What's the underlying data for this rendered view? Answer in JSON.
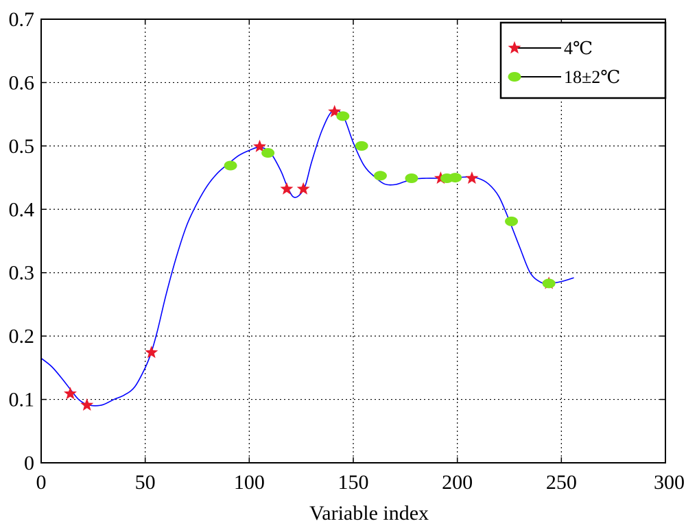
{
  "chart_data": {
    "type": "line",
    "title": "",
    "xlabel": "Variable index",
    "ylabel": "",
    "xlim": [
      0,
      300
    ],
    "ylim": [
      0,
      0.7
    ],
    "x_ticks": [
      0,
      50,
      100,
      150,
      200,
      250,
      300
    ],
    "y_ticks": [
      0,
      0.1,
      0.2,
      0.3,
      0.4,
      0.5,
      0.6,
      0.7
    ],
    "x_tick_labels": [
      "0",
      "50",
      "100",
      "150",
      "200",
      "250",
      "300"
    ],
    "y_tick_labels": [
      "0",
      "0.1",
      "0.2",
      "0.3",
      "0.4",
      "0.5",
      "0.6",
      "0.7"
    ],
    "grid": true,
    "legend_position": "top-right",
    "curve_color": "#0000ff",
    "curve": {
      "x": [
        0,
        5,
        10,
        14,
        18,
        22,
        26,
        30,
        35,
        40,
        45,
        50,
        53,
        56,
        60,
        65,
        70,
        75,
        80,
        85,
        90,
        95,
        100,
        105,
        110,
        115,
        118,
        121,
        124,
        127,
        130,
        135,
        140,
        145,
        150,
        155,
        160,
        165,
        170,
        175,
        180,
        185,
        190,
        195,
        200,
        205,
        210,
        215,
        220,
        225,
        230,
        235,
        240,
        244,
        250,
        256
      ],
      "y": [
        0.165,
        0.152,
        0.133,
        0.116,
        0.1,
        0.092,
        0.09,
        0.092,
        0.1,
        0.107,
        0.12,
        0.15,
        0.175,
        0.21,
        0.265,
        0.325,
        0.375,
        0.41,
        0.438,
        0.458,
        0.472,
        0.485,
        0.493,
        0.498,
        0.49,
        0.462,
        0.438,
        0.42,
        0.422,
        0.438,
        0.475,
        0.525,
        0.555,
        0.548,
        0.505,
        0.47,
        0.452,
        0.44,
        0.439,
        0.444,
        0.448,
        0.449,
        0.449,
        0.449,
        0.45,
        0.451,
        0.449,
        0.44,
        0.42,
        0.382,
        0.34,
        0.3,
        0.285,
        0.283,
        0.286,
        0.292
      ]
    },
    "series": [
      {
        "name": "4℃",
        "marker": "star",
        "color": "#e8192c",
        "x": [
          14,
          22,
          53,
          105,
          118,
          126,
          141,
          192,
          207,
          244
        ],
        "y": [
          0.109,
          0.091,
          0.174,
          0.499,
          0.432,
          0.432,
          0.554,
          0.449,
          0.449,
          0.283
        ]
      },
      {
        "name": "18±2℃",
        "marker": "ellipse",
        "color": "#7fe31e",
        "x": [
          91,
          109,
          145,
          154,
          163,
          178,
          195,
          199,
          226,
          244
        ],
        "y": [
          0.469,
          0.489,
          0.547,
          0.5,
          0.453,
          0.449,
          0.449,
          0.45,
          0.381,
          0.283
        ]
      }
    ]
  }
}
